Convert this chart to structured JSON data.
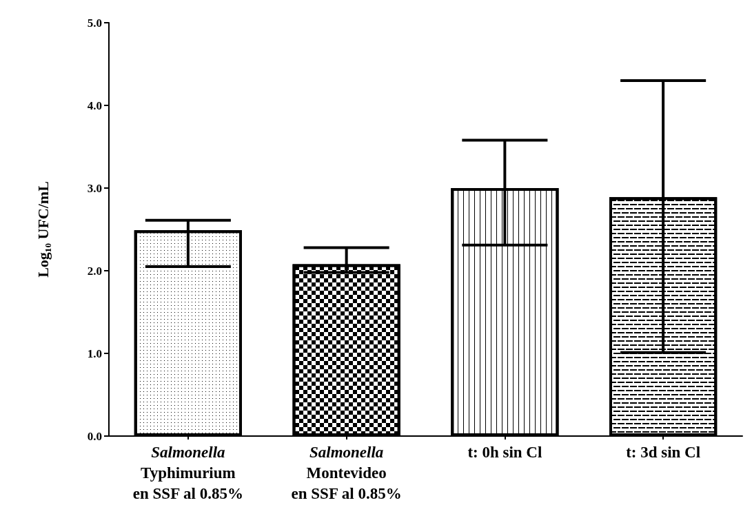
{
  "chart_data": {
    "type": "bar",
    "ylabel": "Log₁₀ UFC/mL",
    "categories": [
      "Salmonella\nTyphimurium\nen SSF al 0.85%",
      "Salmonella\nMontevideo\nen SSF al 0.85%",
      "t: 0h sin Cl",
      "t: 3d sin Cl"
    ],
    "values": [
      2.49,
      2.08,
      3.0,
      2.89
    ],
    "errors": [
      [
        2.05,
        2.61
      ],
      [
        1.98,
        2.28
      ],
      [
        2.31,
        3.58
      ],
      [
        1.01,
        4.3
      ]
    ],
    "color": "#000000",
    "ylim": [
      0,
      5
    ],
    "yticks": [
      {
        "value": 0,
        "label": "0.0"
      },
      {
        "value": 1,
        "label": "1.0"
      },
      {
        "value": 2,
        "label": "2.0"
      },
      {
        "value": 3,
        "label": "3.0"
      },
      {
        "value": 4,
        "label": "4.0"
      },
      {
        "value": 5,
        "label": "5.0"
      }
    ],
    "grid": false
  }
}
